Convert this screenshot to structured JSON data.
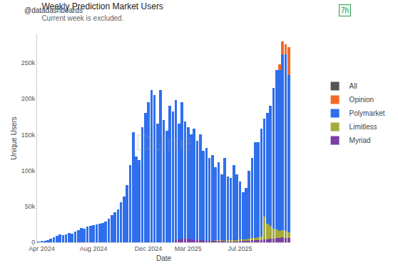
{
  "chart_data": {
    "type": "bar",
    "title": "Weekly Prediction Market Users",
    "subtitle": "Current week is excluded.",
    "x_label": "Date",
    "y_label": "Unique Users",
    "annotations": [
      "Dune",
      "@datadashboards",
      "7h"
    ],
    "stacked": true,
    "grid": false,
    "legend": "right",
    "categories": [
      null,
      "Apr 2024",
      null,
      null,
      null,
      null,
      null,
      null,
      null,
      null,
      null,
      null,
      null,
      null,
      null,
      null,
      null,
      null,
      "Aug 2024",
      null,
      null,
      null,
      null,
      null,
      null,
      null,
      null,
      null,
      null,
      null,
      null,
      null,
      null,
      null,
      null,
      null,
      "Dec 2024",
      null,
      null,
      null,
      null,
      null,
      null,
      null,
      null,
      null,
      null,
      null,
      null,
      "Mar 2025",
      null,
      null,
      null,
      null,
      null,
      null,
      null,
      null,
      null,
      null,
      null,
      null,
      null,
      null,
      null,
      null,
      "Jul 2025",
      null,
      null,
      null,
      null,
      null,
      null,
      null,
      null,
      null,
      null,
      null,
      null,
      null,
      null,
      null,
      null
    ],
    "ylim": [
      0,
      290000
    ],
    "yticks": [
      0,
      {
        "value": 50000,
        "label": "50k"
      },
      {
        "value": 100000,
        "label": "100k"
      },
      {
        "value": 150000,
        "label": "150k"
      },
      {
        "value": 200000,
        "label": "200k"
      },
      {
        "value": 250000,
        "label": "250k"
      }
    ],
    "series": [
      {
        "name": "All",
        "color": "#555555",
        "values": [
          0,
          0,
          0,
          0,
          0,
          0,
          0,
          0,
          0,
          0,
          0,
          0,
          0,
          0,
          0,
          0,
          0,
          0,
          0,
          0,
          0,
          0,
          0,
          0,
          0,
          0,
          0,
          0,
          0,
          0,
          0,
          0,
          0,
          0,
          0,
          0,
          0,
          0,
          0,
          0,
          0,
          0,
          0,
          0,
          0,
          0,
          0,
          0,
          0,
          0,
          0,
          0,
          0,
          0,
          0,
          0,
          0,
          0,
          0,
          0,
          0,
          0,
          0,
          0,
          0,
          0,
          0,
          0,
          0,
          0,
          0,
          0,
          0,
          0,
          0,
          0,
          0,
          0,
          0,
          0,
          0,
          0,
          0
        ]
      },
      {
        "name": "Opinion",
        "color": "#f26b2b",
        "values": [
          0,
          0,
          0,
          0,
          0,
          0,
          0,
          0,
          0,
          0,
          0,
          0,
          0,
          0,
          0,
          0,
          0,
          0,
          0,
          0,
          0,
          0,
          0,
          0,
          0,
          0,
          0,
          0,
          0,
          0,
          0,
          0,
          0,
          0,
          0,
          0,
          0,
          0,
          0,
          0,
          0,
          0,
          0,
          0,
          0,
          0,
          0,
          0,
          0,
          0,
          0,
          0,
          0,
          0,
          0,
          0,
          0,
          0,
          0,
          0,
          0,
          0,
          0,
          0,
          0,
          0,
          0,
          0,
          0,
          0,
          0,
          0,
          0,
          0,
          0,
          0,
          0,
          0,
          0,
          8000,
          18000,
          14000,
          39000
        ]
      },
      {
        "name": "Polymarket",
        "color": "#2f6fec",
        "values": [
          1000,
          2000,
          2000,
          3000,
          5000,
          7000,
          9000,
          11000,
          10000,
          11000,
          13000,
          12000,
          15000,
          17000,
          20000,
          19000,
          22000,
          23000,
          24000,
          25000,
          26000,
          27000,
          29000,
          33000,
          38000,
          42000,
          46000,
          56000,
          64000,
          80000,
          108000,
          153000,
          120000,
          115000,
          160000,
          180000,
          195000,
          212000,
          205000,
          165000,
          212000,
          170000,
          155000,
          190000,
          182000,
          195000,
          161000,
          190000,
          163000,
          155000,
          146000,
          154000,
          139000,
          147000,
          125000,
          130000,
          116000,
          120000,
          102000,
          109000,
          92000,
          116000,
          89000,
          87000,
          105000,
          92000,
          81000,
          66000,
          72000,
          95000,
          112000,
          134000,
          133000,
          150000,
          136000,
          154000,
          167000,
          196000,
          222000,
          224000,
          245000,
          246000,
          219000
        ]
      },
      {
        "name": "Limitless",
        "color": "#a5aa3c",
        "values": [
          0,
          0,
          0,
          0,
          0,
          0,
          0,
          0,
          0,
          0,
          0,
          0,
          0,
          0,
          0,
          0,
          0,
          0,
          0,
          0,
          0,
          0,
          0,
          0,
          0,
          0,
          0,
          0,
          0,
          0,
          0,
          0,
          0,
          0,
          0,
          0,
          0,
          0,
          0,
          0,
          0,
          0,
          0,
          0,
          0,
          0,
          0,
          0,
          0,
          0,
          0,
          0,
          0,
          0,
          0,
          0,
          0,
          0,
          1000,
          1000,
          1000,
          1000,
          2000,
          2000,
          2000,
          2000,
          2000,
          2000,
          2000,
          3000,
          3000,
          3000,
          4000,
          5000,
          32000,
          22000,
          18000,
          14000,
          12000,
          10000,
          10000,
          10000,
          8000
        ]
      },
      {
        "name": "Myriad",
        "color": "#7a3fa3",
        "values": [
          0,
          0,
          0,
          0,
          0,
          0,
          0,
          0,
          0,
          0,
          0,
          0,
          0,
          0,
          0,
          0,
          0,
          0,
          0,
          0,
          0,
          0,
          0,
          0,
          0,
          0,
          0,
          0,
          0,
          0,
          0,
          0,
          0,
          0,
          0,
          0,
          0,
          0,
          0,
          0,
          0,
          0,
          0,
          0,
          0,
          3000,
          4000,
          5000,
          5000,
          5000,
          4000,
          4000,
          3000,
          3000,
          3000,
          2000,
          2000,
          2000,
          2000,
          2000,
          2000,
          1000,
          1000,
          1000,
          1000,
          1000,
          2000,
          2000,
          2000,
          2000,
          3000,
          3000,
          3000,
          3000,
          4000,
          4000,
          5000,
          5000,
          6000,
          6000,
          7000,
          6000,
          6000
        ]
      }
    ]
  }
}
